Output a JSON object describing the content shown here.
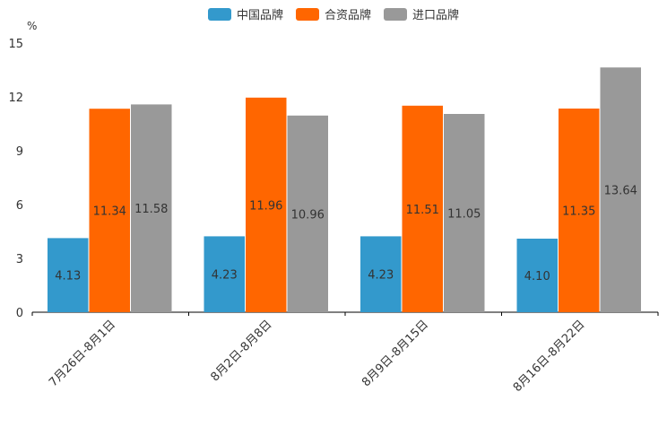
{
  "chart_data": {
    "type": "bar",
    "unit_label": "%",
    "categories": [
      "7月26日-8月1日",
      "8月2日-8月8日",
      "8月9日-8月15日",
      "8月16日-8月22日"
    ],
    "series": [
      {
        "name": "中国品牌",
        "color": "#3399cc",
        "values": [
          4.13,
          4.23,
          4.23,
          4.1
        ],
        "labels": [
          "4.13",
          "4.23",
          "4.23",
          "4.10"
        ]
      },
      {
        "name": "合资品牌",
        "color": "#ff6600",
        "values": [
          11.34,
          11.96,
          11.51,
          11.35
        ],
        "labels": [
          "11.34",
          "11.96",
          "11.51",
          "11.35"
        ]
      },
      {
        "name": "进口品牌",
        "color": "#999999",
        "values": [
          11.58,
          10.96,
          11.05,
          13.64
        ],
        "labels": [
          "11.58",
          "10.96",
          "11.05",
          "13.64"
        ]
      }
    ],
    "ylim": [
      0,
      15
    ],
    "yticks": [
      "0",
      "3",
      "6",
      "9",
      "12",
      "15"
    ],
    "legend_position": "top-center",
    "grid": false
  }
}
